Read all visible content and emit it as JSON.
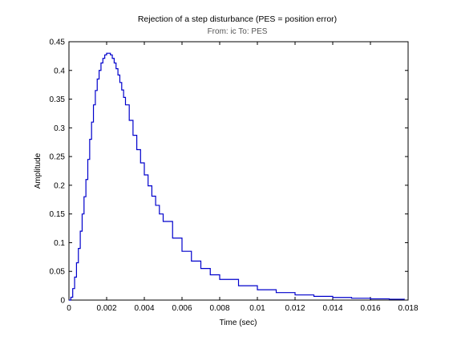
{
  "chart_data": {
    "type": "line",
    "step": true,
    "title": "Rejection of a step disturbance (PES = position error)",
    "subtitle": "From: ic  To: PES",
    "xlabel": "Time (sec)",
    "ylabel": "Amplitude",
    "xlim": [
      0,
      0.018
    ],
    "ylim": [
      0,
      0.45
    ],
    "xticks": [
      0,
      0.002,
      0.004,
      0.006,
      0.008,
      0.01,
      0.012,
      0.014,
      0.016,
      0.018
    ],
    "yticks": [
      0,
      0.05,
      0.1,
      0.15,
      0.2,
      0.25,
      0.3,
      0.35,
      0.4,
      0.45
    ],
    "grid": false,
    "line_color": "#0000cc",
    "series": [
      {
        "x": [
          0,
          0.0001,
          0.0002,
          0.0003,
          0.0004,
          0.0005,
          0.0006,
          0.0007,
          0.0008,
          0.0009,
          0.001,
          0.0011,
          0.0012,
          0.0013,
          0.0014,
          0.0015,
          0.0016,
          0.0017,
          0.0018,
          0.0019,
          0.002,
          0.0021,
          0.0022,
          0.0023,
          0.0024,
          0.0025,
          0.0026,
          0.0027,
          0.0028,
          0.0029,
          0.003,
          0.0032,
          0.0034,
          0.0036,
          0.0038,
          0.004,
          0.0042,
          0.0044,
          0.0046,
          0.0048,
          0.005,
          0.0055,
          0.006,
          0.0065,
          0.007,
          0.0075,
          0.008,
          0.009,
          0.01,
          0.011,
          0.012,
          0.013,
          0.014,
          0.015,
          0.016,
          0.017,
          0.0178
        ],
        "y": [
          0,
          0.005,
          0.02,
          0.04,
          0.065,
          0.09,
          0.12,
          0.15,
          0.18,
          0.21,
          0.245,
          0.28,
          0.31,
          0.34,
          0.365,
          0.385,
          0.4,
          0.413,
          0.421,
          0.427,
          0.43,
          0.43,
          0.427,
          0.421,
          0.413,
          0.403,
          0.392,
          0.379,
          0.366,
          0.353,
          0.34,
          0.313,
          0.287,
          0.262,
          0.239,
          0.218,
          0.199,
          0.181,
          0.165,
          0.15,
          0.137,
          0.108,
          0.085,
          0.068,
          0.055,
          0.044,
          0.036,
          0.025,
          0.018,
          0.013,
          0.009,
          0.0065,
          0.0045,
          0.0032,
          0.0022,
          0.0015,
          0.001
        ]
      }
    ]
  }
}
